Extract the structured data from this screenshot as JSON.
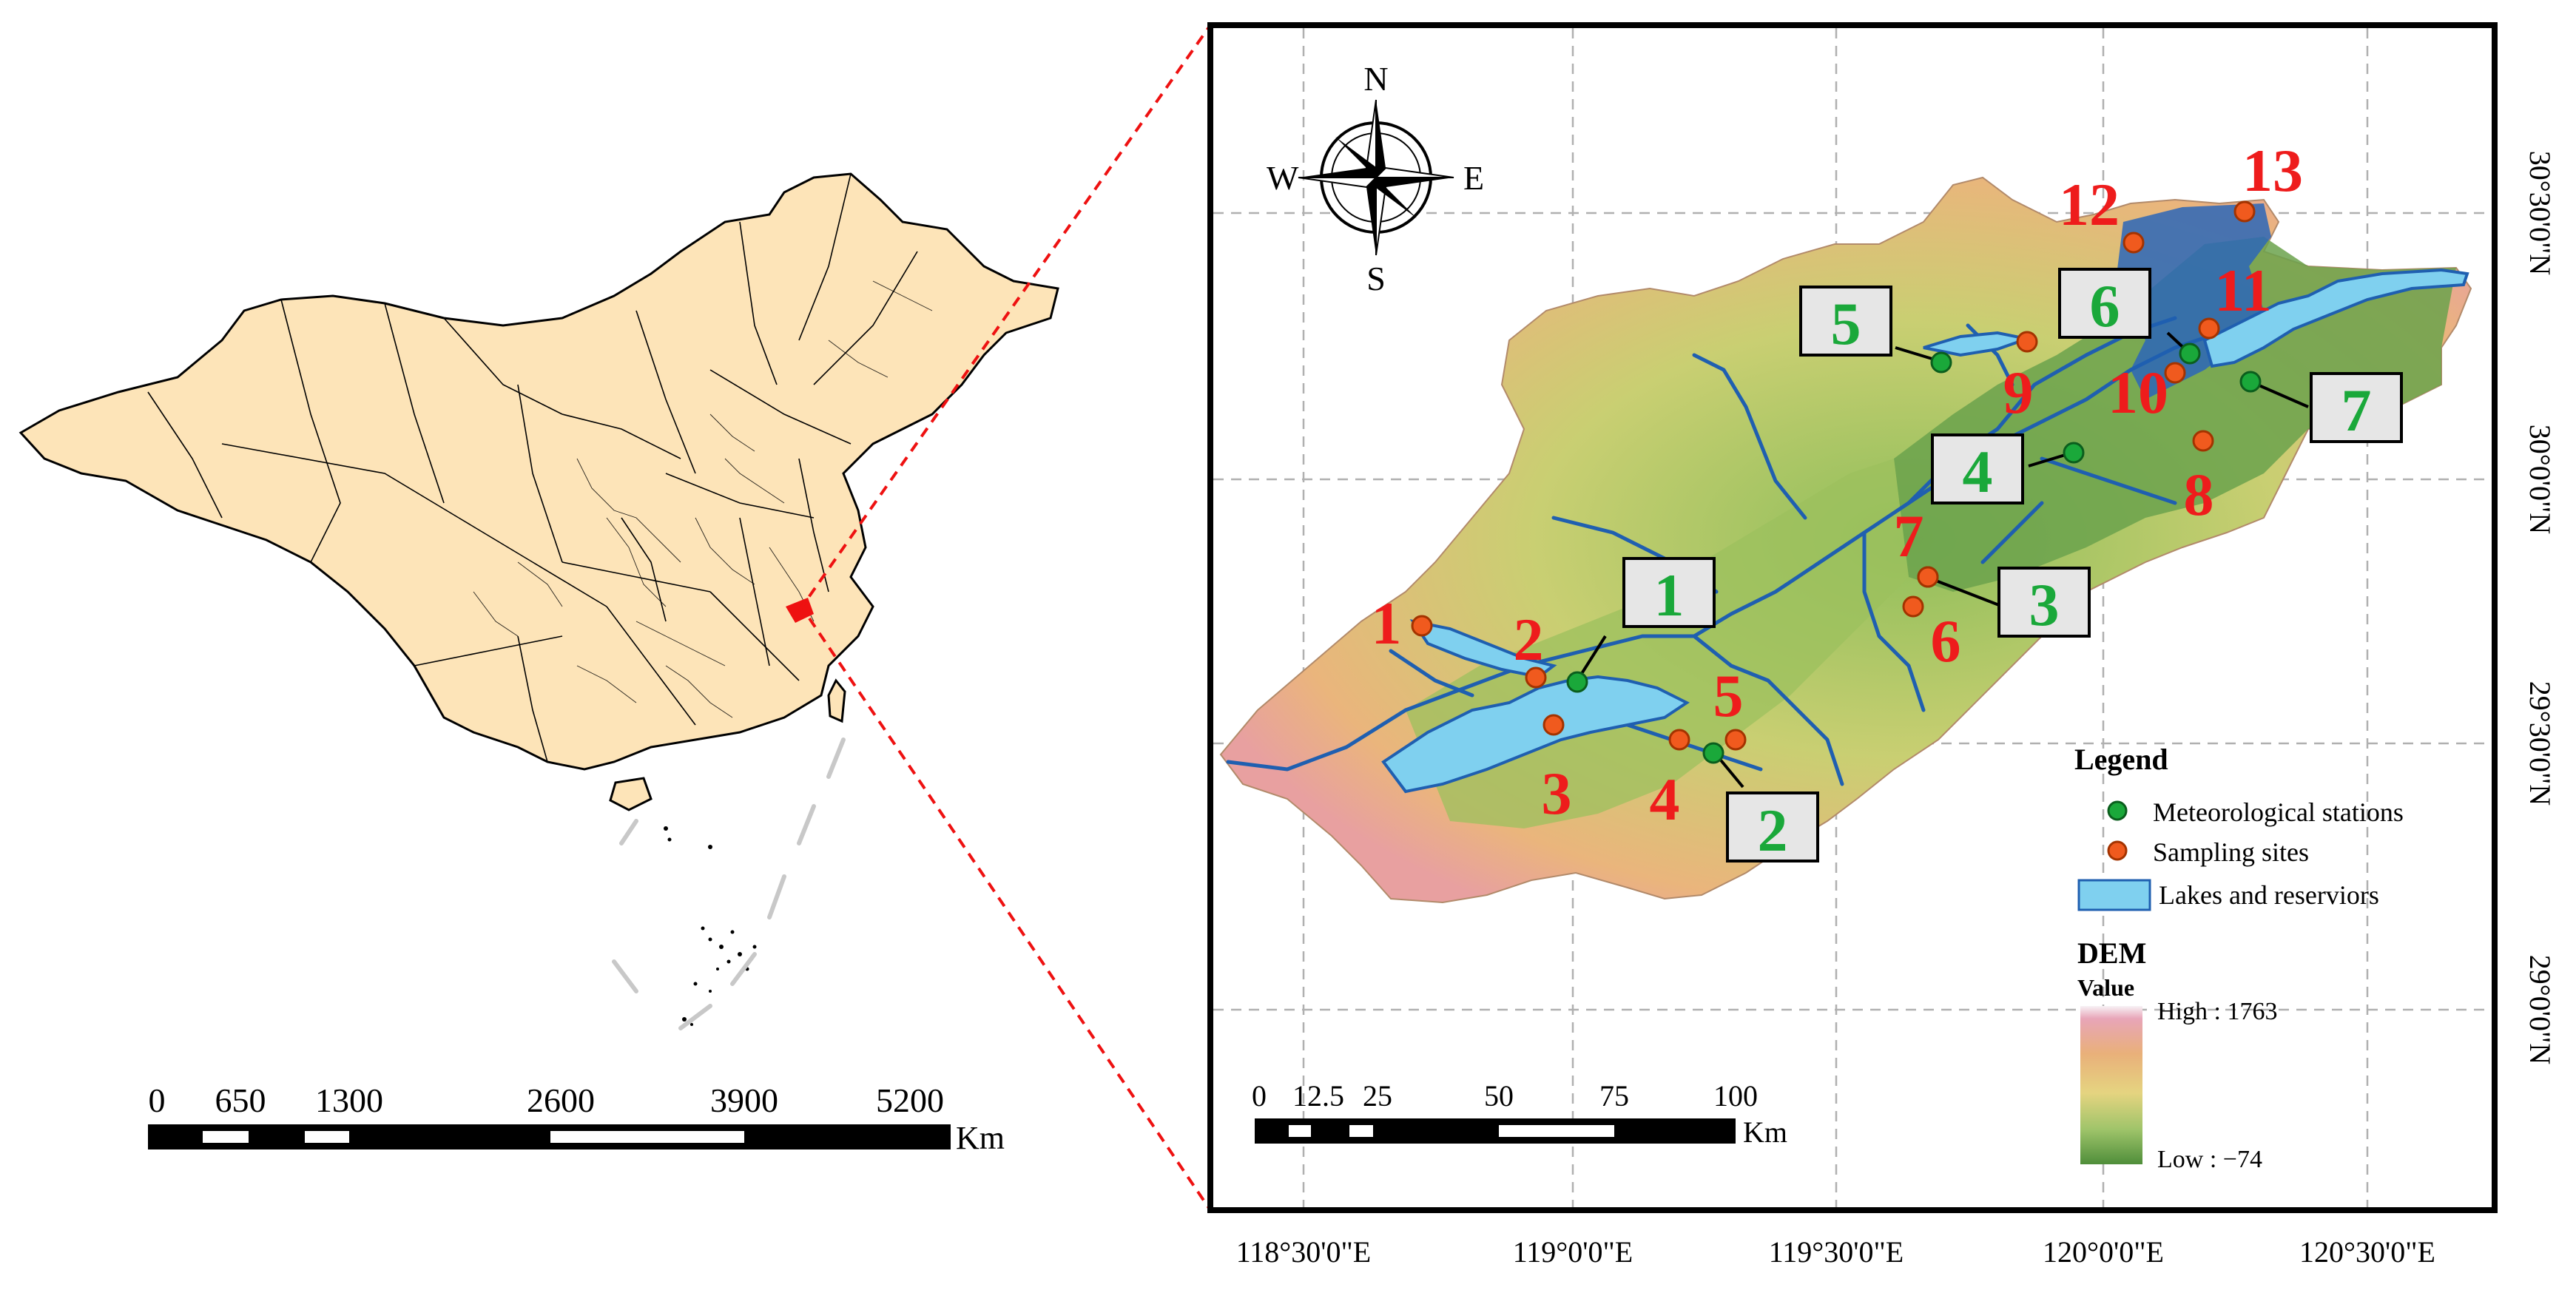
{
  "overview_map": {
    "scale_ticks": [
      "0",
      "650",
      "1300",
      "2600",
      "3900",
      "5200"
    ],
    "scale_unit": "Km"
  },
  "detail_map": {
    "compass": {
      "n": "N",
      "s": "S",
      "e": "E",
      "w": "W"
    },
    "lon_labels": [
      "118°30'0\"E",
      "119°0'0\"E",
      "119°30'0\"E",
      "120°0'0\"E",
      "120°30'0\"E"
    ],
    "lat_labels": [
      "30°30'0\"N",
      "30°0'0\"N",
      "29°30'0\"N",
      "29°0'0\"N"
    ],
    "scale_ticks": [
      "0",
      "12.5",
      "25",
      "50",
      "75",
      "100"
    ],
    "scale_unit": "Km",
    "meteorological_stations": [
      "1",
      "2",
      "3",
      "4",
      "5",
      "6",
      "7"
    ],
    "sampling_sites": [
      "1",
      "2",
      "3",
      "4",
      "5",
      "6",
      "7",
      "8",
      "9",
      "10",
      "11",
      "12",
      "13"
    ],
    "legend": {
      "title": "Legend",
      "items": [
        "Meteorological stations",
        "Sampling sites",
        "Lakes and reserviors"
      ],
      "dem_title": "DEM",
      "dem_value": "Value",
      "dem_high": "High : 1763",
      "dem_low": "Low : −74"
    },
    "colors": {
      "station": "#1aa83a",
      "site": "#f05a1e",
      "site_label": "#ee1c1c",
      "station_label": "#1aa83a",
      "lake": "#7fd0ef",
      "river": "#1f5fb0"
    }
  }
}
